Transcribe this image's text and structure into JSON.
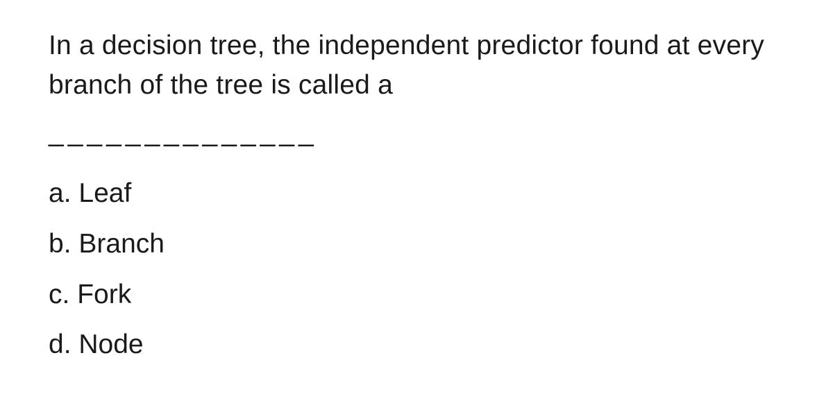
{
  "question": {
    "text": "In a decision tree, the independent predictor found at every branch of the tree is called a",
    "blank": "______________",
    "font_size_pt": 30,
    "text_color": "#1a1a1a",
    "background_color": "#ffffff"
  },
  "options": [
    {
      "letter": "a.",
      "label": "Leaf"
    },
    {
      "letter": "b.",
      "label": "Branch"
    },
    {
      "letter": "c.",
      "label": "Fork"
    },
    {
      "letter": "d.",
      "label": "Node"
    }
  ]
}
